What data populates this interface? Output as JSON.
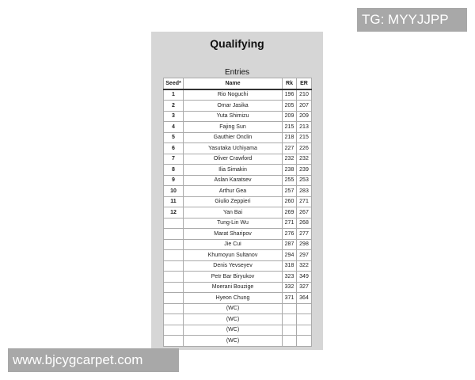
{
  "title": "Qualifying",
  "subtitle": "Entries",
  "columns": [
    "Seed*",
    "Name",
    "Rk",
    "ER"
  ],
  "rows": [
    {
      "seed": "1",
      "name": "Rio Noguchi",
      "rk": "196",
      "er": "210"
    },
    {
      "seed": "2",
      "name": "Omar Jasika",
      "rk": "205",
      "er": "207"
    },
    {
      "seed": "3",
      "name": "Yuta Shimizu",
      "rk": "209",
      "er": "209"
    },
    {
      "seed": "4",
      "name": "Fajing Sun",
      "rk": "215",
      "er": "213"
    },
    {
      "seed": "5",
      "name": "Gauthier Onclin",
      "rk": "218",
      "er": "215"
    },
    {
      "seed": "6",
      "name": "Yasutaka Uchiyama",
      "rk": "227",
      "er": "226"
    },
    {
      "seed": "7",
      "name": "Oliver Crawford",
      "rk": "232",
      "er": "232"
    },
    {
      "seed": "8",
      "name": "Ilia Simakin",
      "rk": "238",
      "er": "239"
    },
    {
      "seed": "9",
      "name": "Aslan Karatsev",
      "rk": "255",
      "er": "253"
    },
    {
      "seed": "10",
      "name": "Arthur Gea",
      "rk": "257",
      "er": "283"
    },
    {
      "seed": "11",
      "name": "Giulio Zeppieri",
      "rk": "260",
      "er": "271"
    },
    {
      "seed": "12",
      "name": "Yan Bai",
      "rk": "269",
      "er": "267"
    },
    {
      "seed": "",
      "name": "Tung-Lin Wu",
      "rk": "271",
      "er": "268"
    },
    {
      "seed": "",
      "name": "Marat Sharipov",
      "rk": "276",
      "er": "277"
    },
    {
      "seed": "",
      "name": "Jie Cui",
      "rk": "287",
      "er": "298"
    },
    {
      "seed": "",
      "name": "Khumoyun Sultanov",
      "rk": "294",
      "er": "297"
    },
    {
      "seed": "",
      "name": "Denis Yevseyev",
      "rk": "318",
      "er": "322"
    },
    {
      "seed": "",
      "name": "Petr Bar Biryukov",
      "rk": "323",
      "er": "349"
    },
    {
      "seed": "",
      "name": "Moerani Bouzige",
      "rk": "332",
      "er": "327"
    },
    {
      "seed": "",
      "name": "Hyeon Chung",
      "rk": "371",
      "er": "364"
    },
    {
      "seed": "",
      "name": "(WC)",
      "rk": "",
      "er": ""
    },
    {
      "seed": "",
      "name": "(WC)",
      "rk": "",
      "er": ""
    },
    {
      "seed": "",
      "name": "(WC)",
      "rk": "",
      "er": ""
    },
    {
      "seed": "",
      "name": "(WC)",
      "rk": "",
      "er": ""
    }
  ],
  "watermark_top": "TG: MYYJJPP",
  "watermark_bottom": "www.bjcygcarpet.com"
}
